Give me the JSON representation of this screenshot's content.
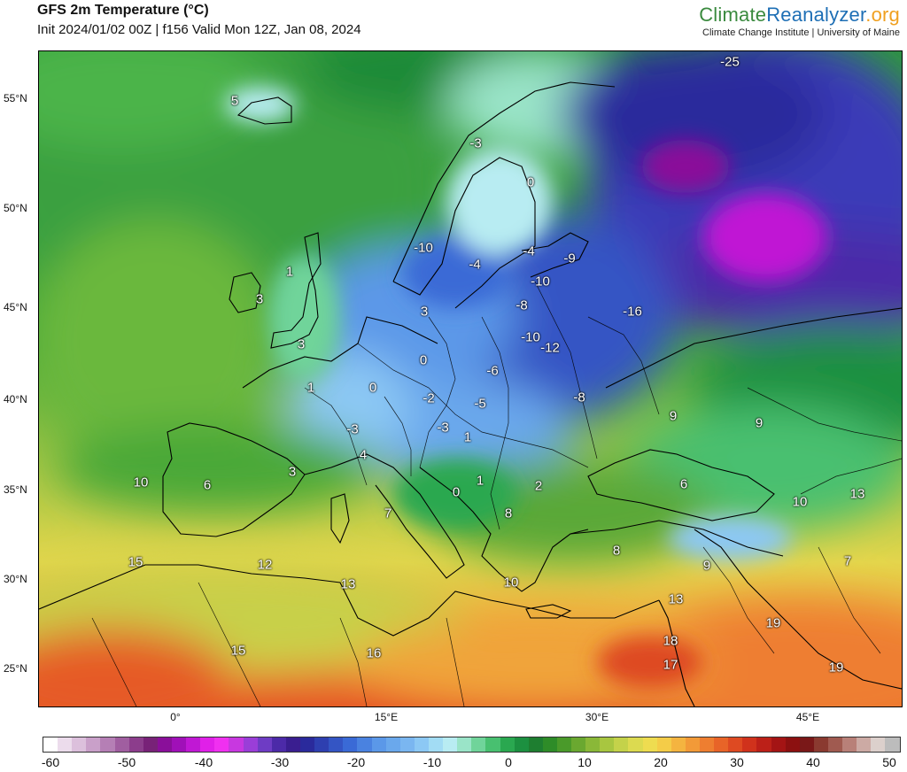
{
  "header": {
    "title": "GFS 2m Temperature (°C)",
    "subtitle": "Init 2024/01/02 00Z | f156 Valid Mon 12Z, Jan 08, 2024"
  },
  "brand": {
    "name_part1": "Climate",
    "name_part2": "Reanalyzer",
    "name_part3": ".org",
    "tagline": "Climate Change Institute | University of Maine",
    "colors": {
      "green": "#3a8a3e",
      "blue": "#1e6fb5",
      "orange": "#f0a020"
    }
  },
  "map": {
    "latitude_labels": [
      "55°N",
      "50°N",
      "45°N",
      "40°N",
      "35°N",
      "30°N",
      "25°N"
    ],
    "longitude_labels": [
      "0°",
      "15°E",
      "30°E",
      "45°E"
    ],
    "temperature_labels": [
      "-25",
      "5",
      "-3",
      "0",
      "-10",
      "-4",
      "-4",
      "-9",
      "1",
      "-10",
      "-8",
      "3",
      "3",
      "-16",
      "3",
      "-10",
      "-12",
      "0",
      "-6",
      "1",
      "0",
      "-2",
      "-5",
      "-8",
      "9",
      "-3",
      "-3",
      "9",
      "1",
      "4",
      "3",
      "10",
      "6",
      "0",
      "1",
      "2",
      "6",
      "13",
      "10",
      "7",
      "8",
      "8",
      "15",
      "12",
      "9",
      "7",
      "13",
      "10",
      "13",
      "19",
      "18",
      "15",
      "16",
      "17",
      "19"
    ]
  },
  "colorbar": {
    "tick_labels": [
      "-60",
      "-50",
      "-40",
      "-30",
      "-20",
      "-10",
      "0",
      "10",
      "20",
      "30",
      "40",
      "50"
    ],
    "colors": [
      "#ffffff",
      "#ecdcec",
      "#dcc0dc",
      "#c9a0c9",
      "#b57fb5",
      "#a05ea0",
      "#8c3d8c",
      "#782278",
      "#8a0f9a",
      "#a010b8",
      "#c018d4",
      "#e020e8",
      "#f030f0",
      "#c838e0",
      "#9a3ed8",
      "#6e3cc4",
      "#4c2aa8",
      "#3a1e90",
      "#2a2a9c",
      "#2e3fb0",
      "#3455c4",
      "#3a6ad6",
      "#4a82e0",
      "#5b98e8",
      "#6aa8ec",
      "#7ab6f0",
      "#8cc8f4",
      "#a2dcf4",
      "#b8ecf2",
      "#9ae4c8",
      "#70d49a",
      "#48c070",
      "#2aa850",
      "#1c9040",
      "#1e7e30",
      "#2e8c28",
      "#4a9a2a",
      "#6aa830",
      "#8ab838",
      "#a8c640",
      "#c4d24a",
      "#dcda50",
      "#eedc50",
      "#f4cc48",
      "#f4b440",
      "#f29a38",
      "#ee7e30",
      "#e86428",
      "#de4a22",
      "#d0321c",
      "#bc2018",
      "#a41414",
      "#8c1010",
      "#7a1818",
      "#8a3a30",
      "#a05a50",
      "#b88078",
      "#ccaaa4",
      "#dcd0cc",
      "#bcbcbc"
    ]
  }
}
